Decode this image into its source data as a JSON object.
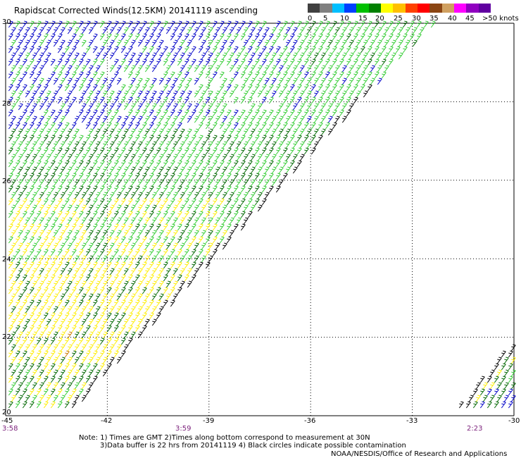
{
  "title": "Rapidscat Corrected Winds(12.5KM) 20141119 ascending",
  "legend": {
    "labels": [
      "0",
      "5",
      "10",
      "15",
      "20",
      "25",
      "30",
      "35",
      "40",
      "45",
      ">50 knots"
    ],
    "colors": [
      "#404040",
      "#808080",
      "#00bfff",
      "#0040ff",
      "#00c000",
      "#008000",
      "#ffff00",
      "#ffc000",
      "#ff4000",
      "#ff0000",
      "#8b4513",
      "#d0a060",
      "#ff00ff",
      "#9000c0",
      "#6000a0"
    ]
  },
  "axes": {
    "x_ticks": [
      "-45",
      "-42",
      "-39",
      "-36",
      "-33",
      "-30"
    ],
    "y_ticks": [
      "30",
      "28",
      "26",
      "24",
      "22",
      "20"
    ]
  },
  "time_labels": [
    "3:58",
    "3:59",
    "2:23"
  ],
  "notes": [
    "Note: 1) Times are GMT 2)Times along bottom correspond to measurement at 30N",
    "3)Data buffer is 22 hrs from 20141119 4) Black circles indicate possible contamination"
  ],
  "credit": "NOAA/NESDIS/Office of Research and Applications",
  "wind_colors": {
    "blue": "#0000c8",
    "light_green": "#33cc33",
    "dark_green": "#006600",
    "yellow": "#ffee00",
    "orange": "#cc7a00",
    "black": "#000000"
  }
}
